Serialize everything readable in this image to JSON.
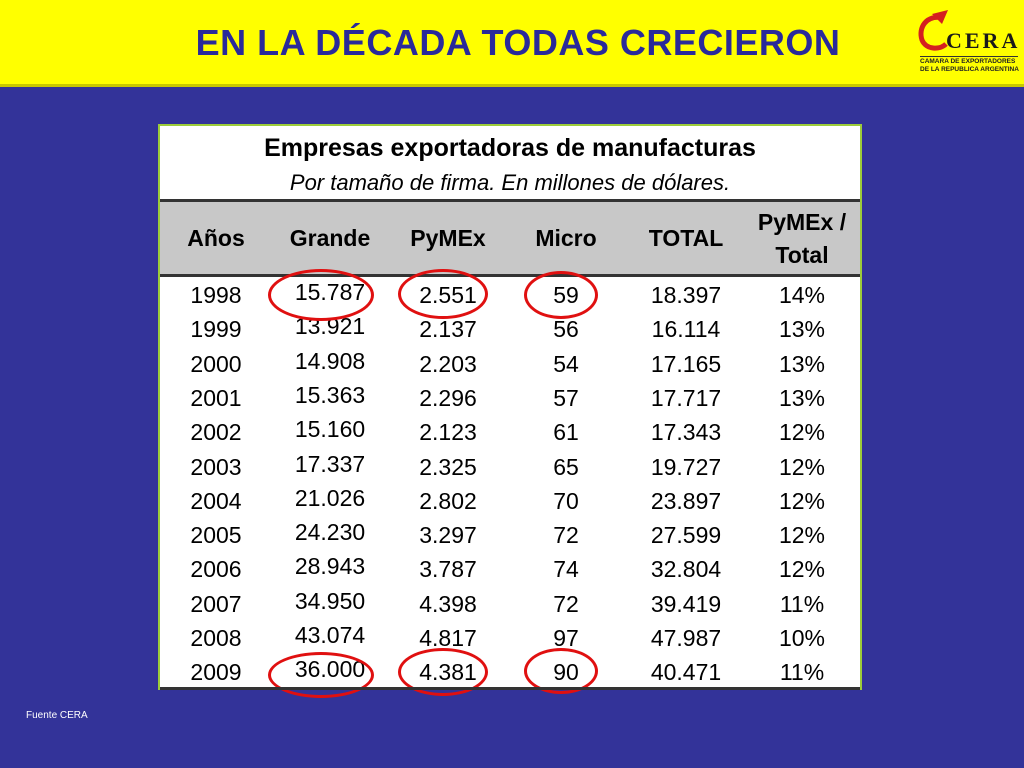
{
  "slide": {
    "title": "EN LA DÉCADA TODAS CRECIERON",
    "source": "Fuente CERA"
  },
  "logo": {
    "word": "CERA",
    "subtitle_line1": "CAMARA DE EXPORTADORES",
    "subtitle_line2": "DE LA REPUBLICA ARGENTINA"
  },
  "table": {
    "title": "Empresas exportadoras de manufacturas",
    "subtitle": "Por tamaño de firma. En millones de dólares.",
    "columns": [
      "Años",
      "Grande",
      "PyMEx",
      "Micro",
      "TOTAL",
      "PyMEx /",
      "Total"
    ],
    "rows": [
      [
        "1998",
        "15.787",
        "2.551",
        "59",
        "18.397",
        "14%"
      ],
      [
        "1999",
        "13.921",
        "2.137",
        "56",
        "16.114",
        "13%"
      ],
      [
        "2000",
        "14.908",
        "2.203",
        "54",
        "17.165",
        "13%"
      ],
      [
        "2001",
        "15.363",
        "2.296",
        "57",
        "17.717",
        "13%"
      ],
      [
        "2002",
        "15.160",
        "2.123",
        "61",
        "17.343",
        "12%"
      ],
      [
        "2003",
        "17.337",
        "2.325",
        "65",
        "19.727",
        "12%"
      ],
      [
        "2004",
        "21.026",
        "2.802",
        "70",
        "23.897",
        "12%"
      ],
      [
        "2005",
        "24.230",
        "3.297",
        "72",
        "27.599",
        "12%"
      ],
      [
        "2006",
        "28.943",
        "3.787",
        "74",
        "32.804",
        "12%"
      ],
      [
        "2007",
        "34.950",
        "4.398",
        "72",
        "39.419",
        "11%"
      ],
      [
        "2008",
        "43.074",
        "4.817",
        "97",
        "47.987",
        "10%"
      ],
      [
        "2009",
        "36.000",
        "4.381",
        "90",
        "40.471",
        "11%"
      ]
    ]
  },
  "colors": {
    "background": "#333399",
    "header_bar": "#ffff00",
    "title_text": "#2a2a9a",
    "highlight_circle": "#e01010",
    "table_header_band": "#c8c8c8"
  }
}
